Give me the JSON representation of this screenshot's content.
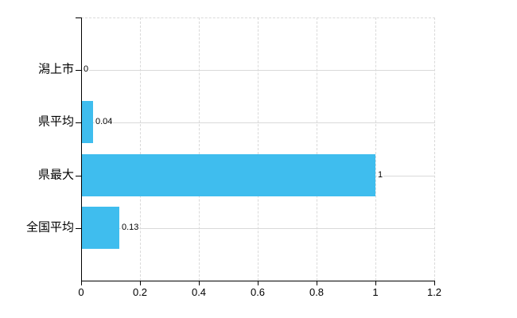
{
  "chart_data": {
    "type": "bar",
    "orientation": "horizontal",
    "title": "",
    "categories": [
      "潟上市",
      "県平均",
      "県最大",
      "全国平均"
    ],
    "values": [
      0,
      0.04,
      1,
      0.13
    ],
    "value_labels": [
      "0",
      "0.04",
      "1",
      "0.13"
    ],
    "xlim": [
      0,
      1.2
    ],
    "x_ticks": [
      0,
      0.2,
      0.4,
      0.6,
      0.8,
      1,
      1.2
    ],
    "x_tick_labels": [
      "0",
      "0.2",
      "0.4",
      "0.6",
      "0.8",
      "1",
      "1.2"
    ],
    "legend": "none",
    "grid": "on",
    "colors": {
      "bar": "#3fbdee",
      "grid": "#d9d9d9",
      "axis": "#000000",
      "text": "#000000",
      "background": "#ffffff"
    }
  }
}
